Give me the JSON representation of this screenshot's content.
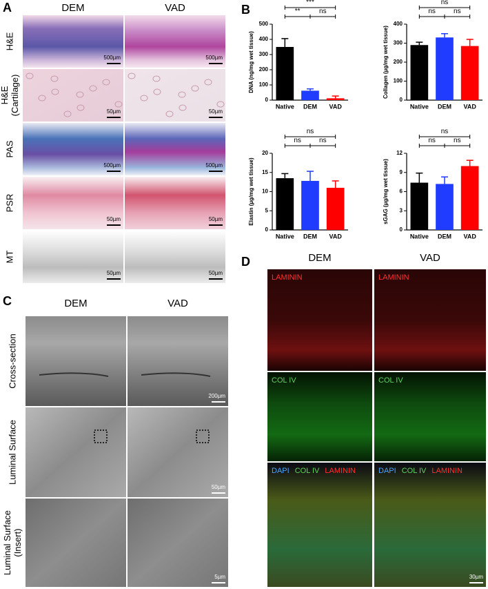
{
  "panel_a": {
    "label": "A",
    "columns": [
      "DEM",
      "VAD"
    ],
    "rows": [
      {
        "label": [
          "H&E"
        ],
        "scale_bars": [
          "500µm",
          "500µm"
        ]
      },
      {
        "label": [
          "H&E",
          "(Cartilage)"
        ],
        "scale_bars": [
          "50µm",
          "50µm"
        ]
      },
      {
        "label": [
          "PAS"
        ],
        "scale_bars": [
          "500µm",
          "500µm"
        ]
      },
      {
        "label": [
          "PSR"
        ],
        "scale_bars": [
          "50µm",
          "50µm"
        ]
      },
      {
        "label": [
          "MT"
        ],
        "scale_bars": [
          "50µm",
          "50µm"
        ]
      }
    ]
  },
  "panel_b": {
    "label": "B"
  },
  "chart_data": [
    {
      "type": "bar",
      "ylabel": "DNA (ng/mg wet tissue)",
      "categories": [
        "Native",
        "DEM",
        "VAD"
      ],
      "values": [
        350,
        62,
        12
      ],
      "errors": [
        55,
        12,
        15
      ],
      "colors": [
        "#000000",
        "#1f3cff",
        "#ff0000"
      ],
      "ylim": [
        0,
        500
      ],
      "yticks": [
        0,
        100,
        200,
        300,
        400,
        500
      ],
      "annotations": [
        {
          "text": "***",
          "from": 0,
          "to": 2
        },
        {
          "text": "**",
          "from": 0,
          "to": 1
        },
        {
          "text": "ns",
          "from": 1,
          "to": 2
        }
      ]
    },
    {
      "type": "bar",
      "ylabel": "Collagen (µg/mg wet tissue)",
      "categories": [
        "Native",
        "DEM",
        "VAD"
      ],
      "values": [
        290,
        330,
        285
      ],
      "errors": [
        15,
        20,
        35
      ],
      "colors": [
        "#000000",
        "#1f3cff",
        "#ff0000"
      ],
      "ylim": [
        0,
        400
      ],
      "yticks": [
        0,
        100,
        200,
        300,
        400
      ],
      "annotations": [
        {
          "text": "ns",
          "from": 0,
          "to": 2
        },
        {
          "text": "ns",
          "from": 0,
          "to": 1
        },
        {
          "text": "ns",
          "from": 1,
          "to": 2
        }
      ]
    },
    {
      "type": "bar",
      "ylabel": "Elastin (µg/mg wet tissue)",
      "categories": [
        "Native",
        "DEM",
        "VAD"
      ],
      "values": [
        13.5,
        12.8,
        11
      ],
      "errors": [
        1.2,
        2.5,
        1.8
      ],
      "colors": [
        "#000000",
        "#1f3cff",
        "#ff0000"
      ],
      "ylim": [
        0,
        20
      ],
      "yticks": [
        0,
        5,
        10,
        15,
        20
      ],
      "annotations": [
        {
          "text": "ns",
          "from": 0,
          "to": 2
        },
        {
          "text": "ns",
          "from": 0,
          "to": 1
        },
        {
          "text": "ns",
          "from": 1,
          "to": 2
        }
      ]
    },
    {
      "type": "bar",
      "ylabel": "sGAG (µg/mg wet tissue)",
      "categories": [
        "Native",
        "DEM",
        "VAD"
      ],
      "values": [
        7.4,
        7.2,
        10
      ],
      "errors": [
        1.5,
        1.1,
        0.9
      ],
      "colors": [
        "#000000",
        "#1f3cff",
        "#ff0000"
      ],
      "ylim": [
        0,
        12
      ],
      "yticks": [
        0,
        3,
        6,
        9,
        12
      ],
      "annotations": [
        {
          "text": "ns",
          "from": 0,
          "to": 2
        },
        {
          "text": "ns",
          "from": 0,
          "to": 1
        },
        {
          "text": "ns",
          "from": 1,
          "to": 2
        }
      ]
    }
  ],
  "panel_c": {
    "label": "C",
    "columns": [
      "DEM",
      "VAD"
    ],
    "rows": [
      {
        "label": [
          "Cross-section"
        ],
        "scale_bar": "200µm"
      },
      {
        "label": [
          "Luminal Surface"
        ],
        "scale_bar": "50µm"
      },
      {
        "label": [
          "Luminal Surface",
          "(Insert)"
        ],
        "scale_bar": "5µm"
      }
    ]
  },
  "panel_d": {
    "label": "D",
    "columns": [
      "DEM",
      "VAD"
    ],
    "rows": [
      {
        "stains": [
          {
            "text": "LAMININ",
            "color": "#ff3030"
          }
        ]
      },
      {
        "stains": [
          {
            "text": "COL IV",
            "color": "#5fd35f"
          }
        ]
      },
      {
        "stains": [
          {
            "text": "DAPI",
            "color": "#4aa3ff"
          },
          {
            "text": "COL IV",
            "color": "#5fd35f"
          },
          {
            "text": "LAMININ",
            "color": "#ff3030"
          }
        ]
      }
    ],
    "scale_bar": "30µm"
  }
}
